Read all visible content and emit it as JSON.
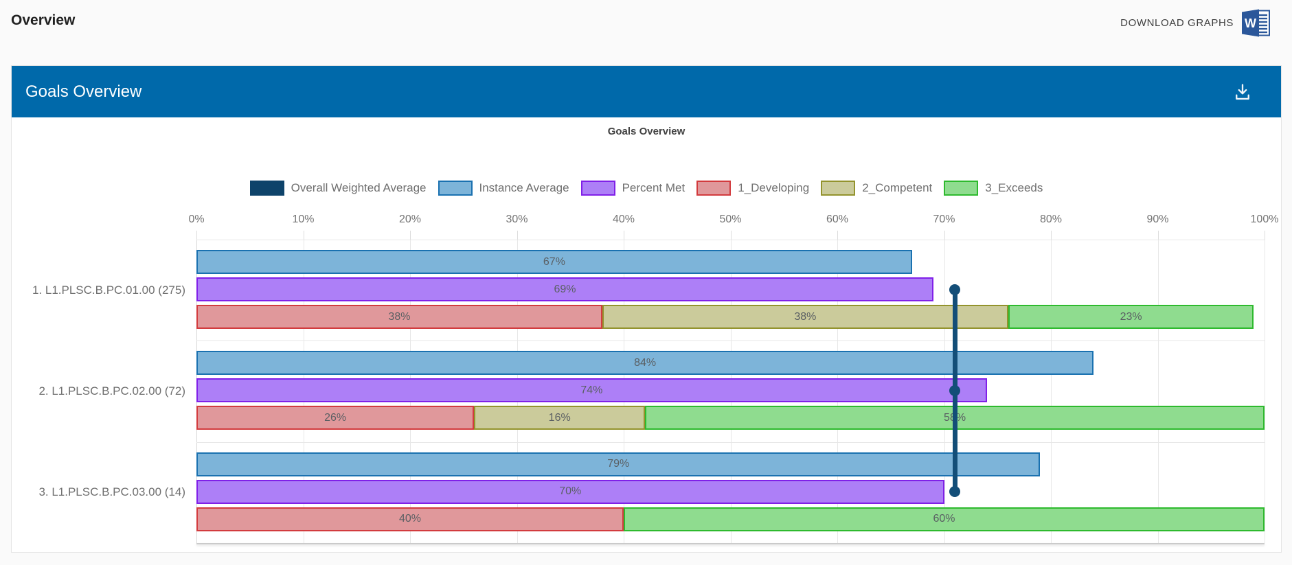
{
  "page": {
    "title": "Overview",
    "download_button": {
      "label": "DOWNLOAD GRAPHS",
      "icon": "word-document-icon"
    }
  },
  "panel": {
    "title": "Goals Overview",
    "download_icon": "download-icon"
  },
  "colors": {
    "panel_header_blue": "#0069aa",
    "word_icon_blue": "#2b579a",
    "grid": "#e7e7e7",
    "axis": "#cbcbcb"
  },
  "chart_data": {
    "type": "bar",
    "orientation": "horizontal",
    "title": "Goals Overview",
    "xlabel": "",
    "ylabel": "",
    "xlim": [
      0,
      100
    ],
    "x_ticks": [
      "0%",
      "10%",
      "20%",
      "30%",
      "40%",
      "50%",
      "60%",
      "70%",
      "80%",
      "90%",
      "100%"
    ],
    "grid": true,
    "legend_position": "top",
    "legend": [
      {
        "name": "Overall Weighted Average",
        "fill": "#0e436a",
        "border": "#0e436a"
      },
      {
        "name": "Instance Average",
        "fill": "#7db4d9",
        "border": "#1a71b0"
      },
      {
        "name": "Percent Met",
        "fill": "#ad7ff7",
        "border": "#8020e8"
      },
      {
        "name": "1_Developing",
        "fill": "#e0989b",
        "border": "#d23b3e"
      },
      {
        "name": "2_Competent",
        "fill": "#cbcb9b",
        "border": "#93932d"
      },
      {
        "name": "3_Exceeds",
        "fill": "#8fdc8f",
        "border": "#2eba2e"
      }
    ],
    "categories": [
      "1. L1.PLSC.B.PC.01.00 (275)",
      "2. L1.PLSC.B.PC.02.00 (72)",
      "3. L1.PLSC.B.PC.03.00 (14)"
    ],
    "series": [
      {
        "name": "Instance Average",
        "kind": "bar",
        "values": [
          67,
          84,
          79
        ]
      },
      {
        "name": "Percent Met",
        "kind": "bar",
        "values": [
          69,
          74,
          70
        ]
      },
      {
        "name": "1_Developing",
        "kind": "stacked",
        "values": [
          38,
          26,
          40
        ]
      },
      {
        "name": "2_Competent",
        "kind": "stacked",
        "values": [
          38,
          16,
          0
        ]
      },
      {
        "name": "3_Exceeds",
        "kind": "stacked",
        "values": [
          23,
          58,
          60
        ]
      }
    ],
    "overall_weighted_average": 71,
    "owa_line_color": "#134e78"
  }
}
